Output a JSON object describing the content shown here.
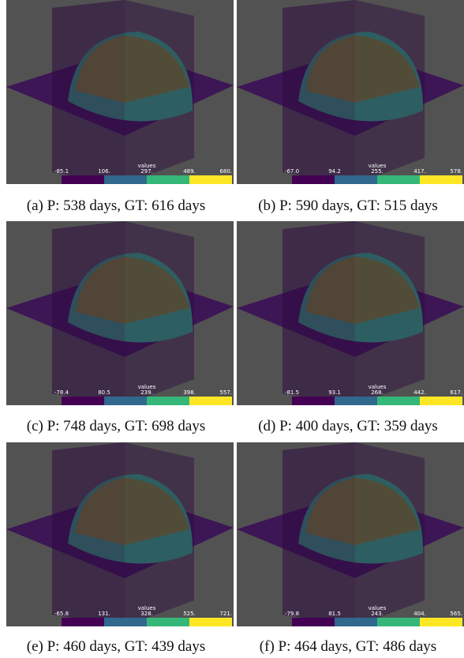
{
  "panels": [
    {
      "caption": "(a) P: 538 days, GT: 616 days",
      "colorbar_title": "values",
      "ticks": [
        "-85.1",
        "106.",
        "297.",
        "489.",
        "680."
      ]
    },
    {
      "caption": "(b) P: 590 days, GT: 515 days",
      "colorbar_title": "values",
      "ticks": [
        "-67.0",
        "94.2",
        "255.",
        "417.",
        "578."
      ]
    },
    {
      "caption": "(c) P: 748 days, GT: 698 days",
      "colorbar_title": "values",
      "ticks": [
        "-78.4",
        "80.5",
        "239.",
        "398.",
        "557."
      ]
    },
    {
      "caption": "(d) P: 400 days, GT: 359 days",
      "colorbar_title": "values",
      "ticks": [
        "-81.5",
        "93.1",
        "268.",
        "442.",
        "617."
      ]
    },
    {
      "caption": "(e) P: 460 days, GT: 439 days",
      "colorbar_title": "values",
      "ticks": [
        "-65.8",
        "131.",
        "328.",
        "525.",
        "721."
      ]
    },
    {
      "caption": "(f) P: 464 days, GT: 486 days",
      "colorbar_title": "values",
      "ticks": [
        "-79.8",
        "81.5",
        "243.",
        "404.",
        "565."
      ]
    }
  ]
}
